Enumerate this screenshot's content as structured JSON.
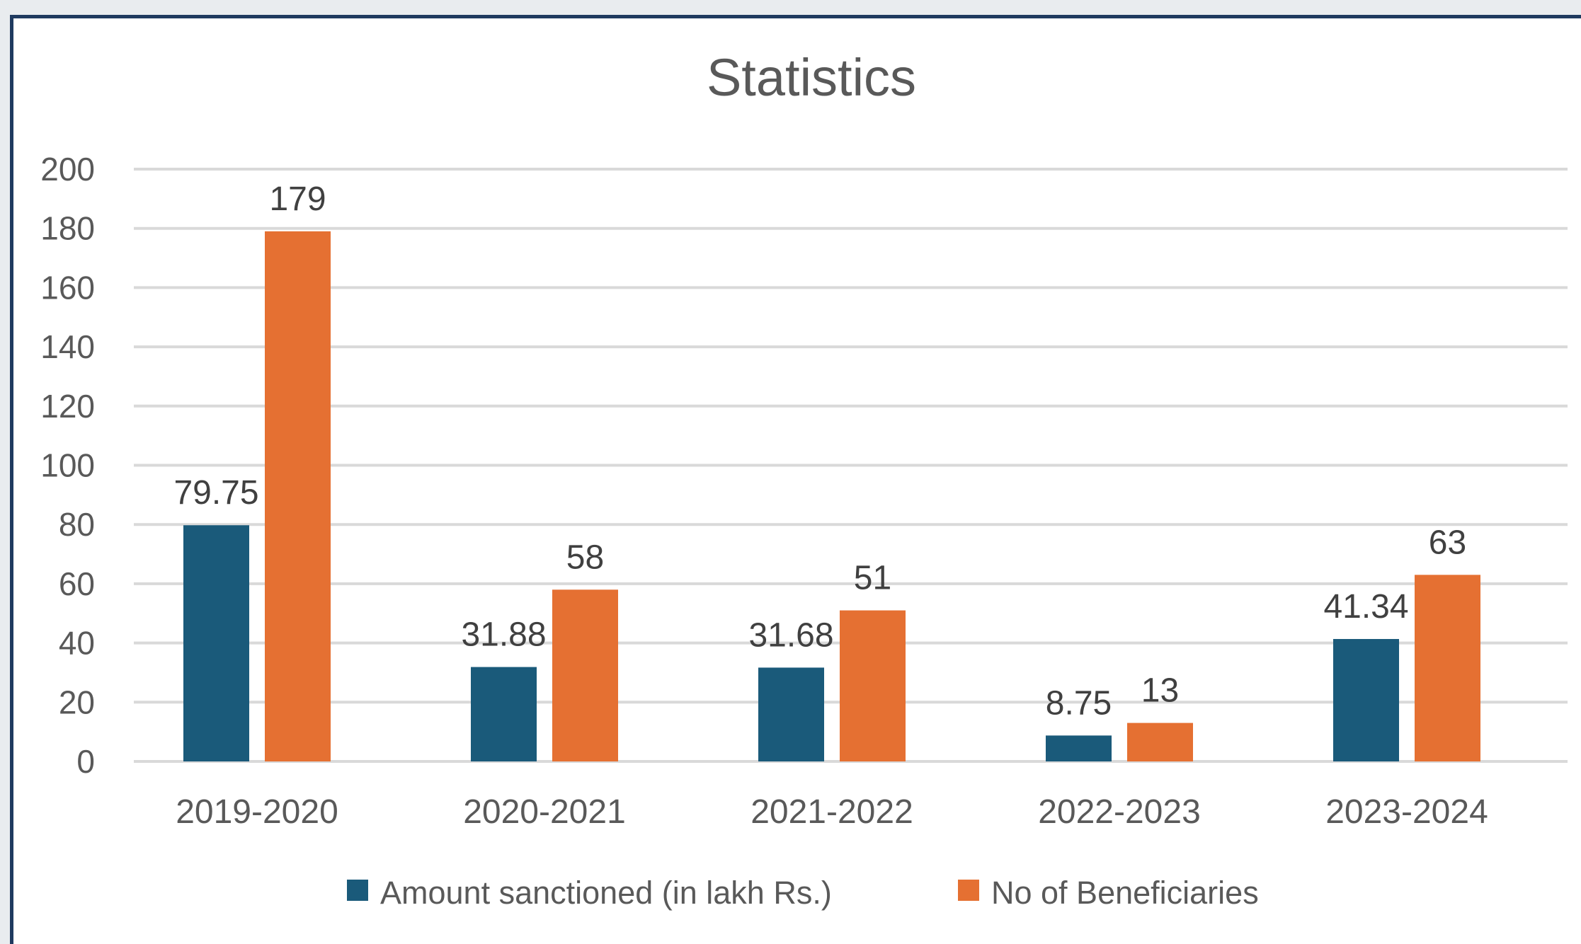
{
  "chart_data": {
    "type": "bar",
    "title": "Statistics",
    "categories": [
      "2019-2020",
      "2020-2021",
      "2021-2022",
      "2022-2023",
      "2023-2024"
    ],
    "series": [
      {
        "name": "Amount sanctioned (in lakh Rs.)",
        "values": [
          79.75,
          31.88,
          31.68,
          8.75,
          41.34
        ],
        "color": "#1a5a7a",
        "labels": [
          "79.75",
          "31.88",
          "31.68",
          "8.75",
          "41.34"
        ]
      },
      {
        "name": "No of Beneficiaries",
        "values": [
          179,
          58,
          51,
          13,
          63
        ],
        "color": "#e57032",
        "labels": [
          "179",
          "58",
          "51",
          "13",
          "63"
        ]
      }
    ],
    "ylim": [
      0,
      200
    ],
    "yticks": [
      0,
      20,
      40,
      60,
      80,
      100,
      120,
      140,
      160,
      180,
      200
    ],
    "grid": true,
    "legend": "bottom",
    "xlabel": "",
    "ylabel": ""
  }
}
